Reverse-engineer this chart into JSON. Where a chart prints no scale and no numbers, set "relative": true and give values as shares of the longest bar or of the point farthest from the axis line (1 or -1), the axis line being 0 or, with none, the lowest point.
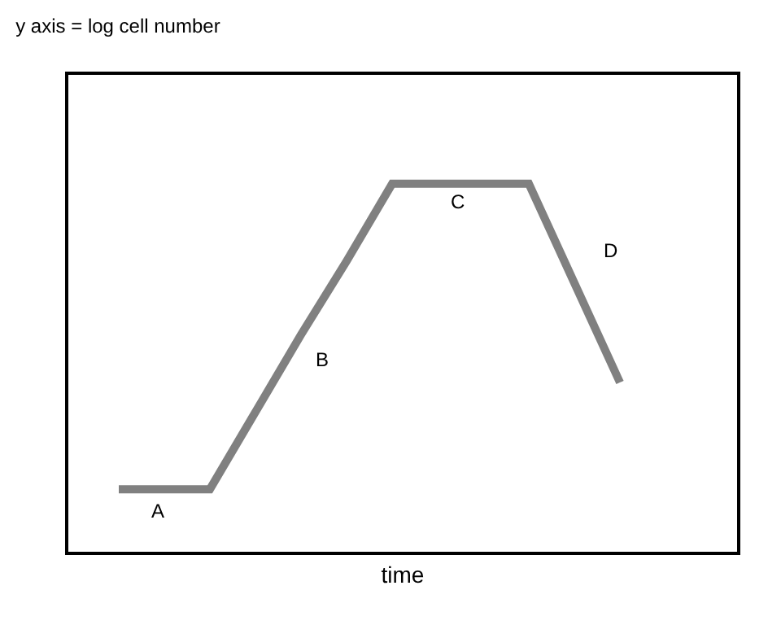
{
  "chart_data": {
    "type": "line",
    "title": "y axis = log cell number",
    "xlabel": "time",
    "relative": true,
    "categories": [
      null,
      null,
      null,
      null,
      null,
      null,
      null,
      null,
      null,
      null,
      null,
      null
    ],
    "series": [
      {
        "color": "#808080",
        "values": [
          0.17,
          0.17,
          0.17,
          0.38,
          0.59,
          0.79,
          1,
          1,
          1,
          1,
          0.73,
          0.46
        ]
      }
    ],
    "annotations": [
      "A",
      "B",
      "C",
      "D"
    ],
    "legend": false,
    "tick_labels": false,
    "marker": "none",
    "line_style": "solid"
  }
}
